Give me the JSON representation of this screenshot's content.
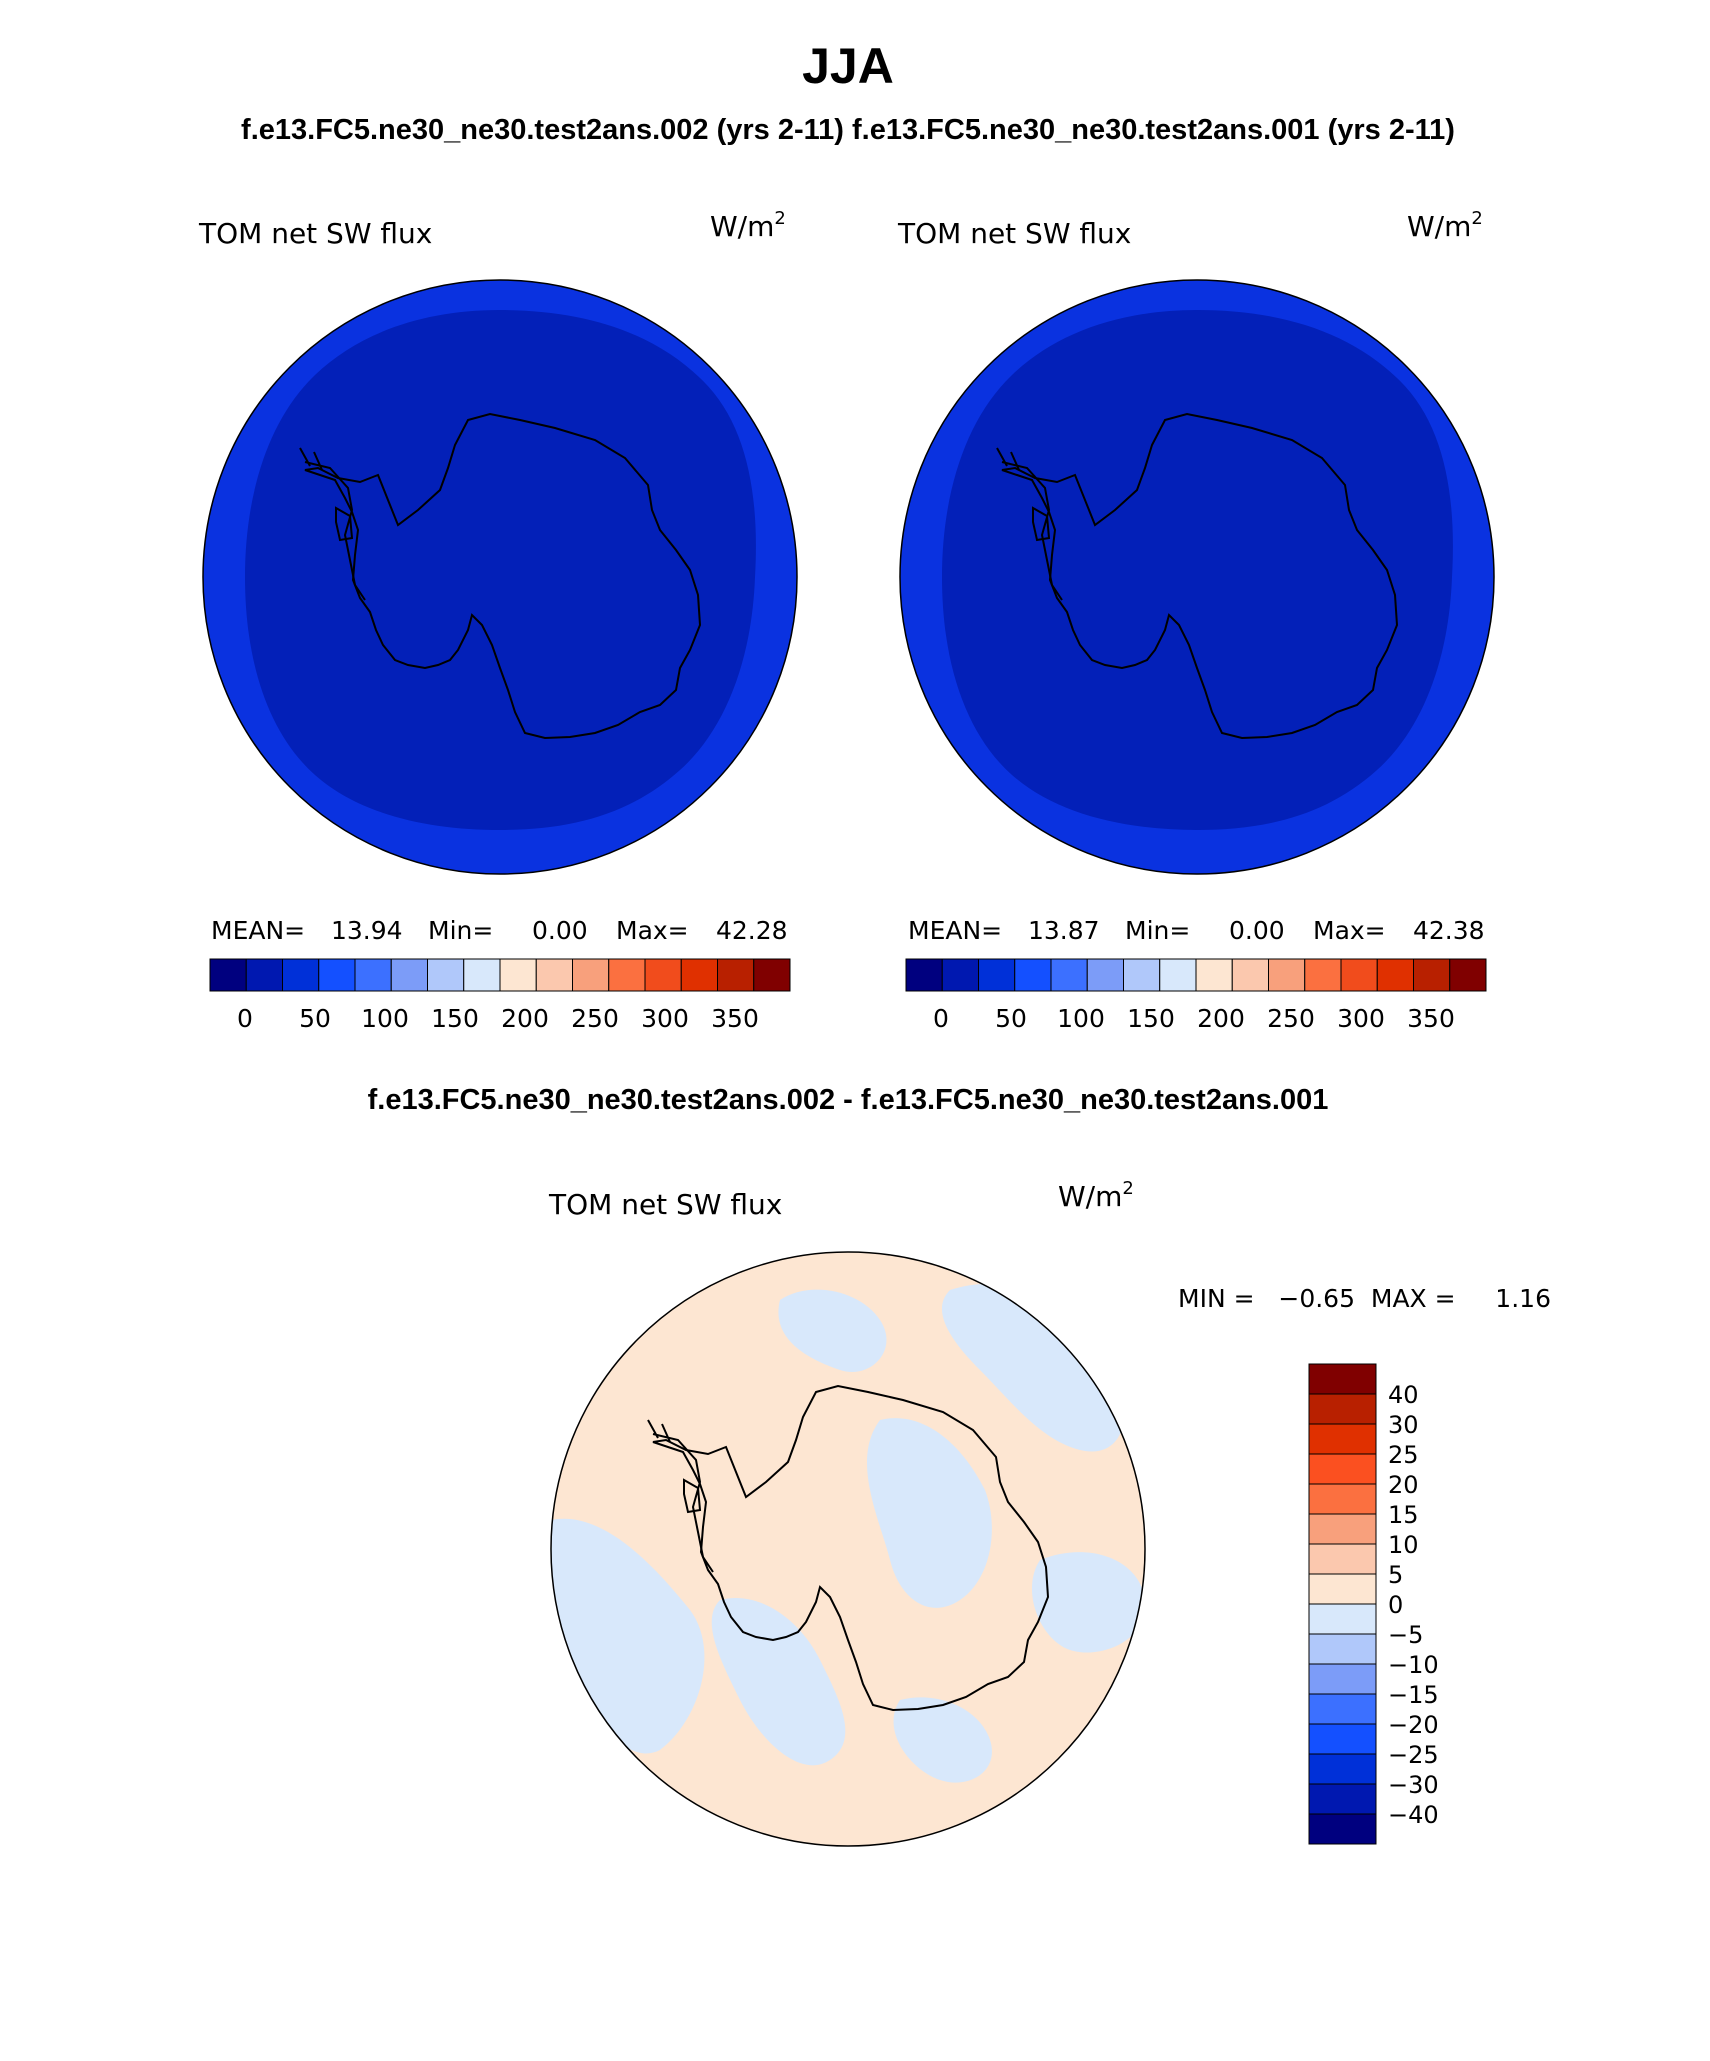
{
  "page": {
    "title": "JJA",
    "subtitle": "f.e13.FC5.ne30_ne30.test2ans.002 (yrs 2-11) f.e13.FC5.ne30_ne30.test2ans.001 (yrs 2-11)",
    "diff_title": "f.e13.FC5.ne30_ne30.test2ans.002 - f.e13.FC5.ne30_ne30.test2ans.001"
  },
  "panels": [
    {
      "variable": "TOM net SW flux",
      "units_base": "W/m",
      "units_exp": "2",
      "stats": {
        "mean_label": "MEAN=",
        "mean": "13.94",
        "min_label": "Min=",
        "min": "0.00",
        "max_label": "Max=",
        "max": "42.28"
      }
    },
    {
      "variable": "TOM net SW flux",
      "units_base": "W/m",
      "units_exp": "2",
      "stats": {
        "mean_label": "MEAN=",
        "mean": "13.87",
        "min_label": "Min=",
        "min": "0.00",
        "max_label": "Max=",
        "max": "42.38"
      }
    }
  ],
  "diff_panel": {
    "variable": "TOM net SW flux",
    "units_base": "W/m",
    "units_exp": "2",
    "minmax": "MIN =   −0.65  MAX =     1.16"
  },
  "colorbar_main": {
    "colors": [
      "#00007f",
      "#0018b0",
      "#0030d8",
      "#1450ff",
      "#3c70ff",
      "#7c9cf8",
      "#b0c8fa",
      "#d8e8fb",
      "#fde6d2",
      "#fbc8ae",
      "#f8a07c",
      "#fb7040",
      "#f14c1c",
      "#e03000",
      "#b82000",
      "#800000"
    ],
    "tick_labels": [
      "0",
      "50",
      "100",
      "150",
      "200",
      "250",
      "300",
      "350"
    ]
  },
  "colorbar_diff": {
    "colors_top_to_bottom": [
      "#800000",
      "#b82000",
      "#e03000",
      "#fb5020",
      "#fb7040",
      "#f8a07c",
      "#fbc8ae",
      "#fde6d2",
      "#d8e8fb",
      "#b0c8fa",
      "#7c9cf8",
      "#3c70ff",
      "#1450ff",
      "#0030d8",
      "#0018b0",
      "#00007f"
    ],
    "tick_labels": [
      "40",
      "30",
      "25",
      "20",
      "15",
      "10",
      "5",
      "0",
      "−5",
      "−10",
      "−15",
      "−20",
      "−25",
      "−30",
      "−40"
    ]
  },
  "map_colors": {
    "outer_ring": "#0a32e0",
    "inner_field": "#0320b8",
    "diff_positive": "#fde6d2",
    "diff_negative": "#d8e8fb"
  }
}
